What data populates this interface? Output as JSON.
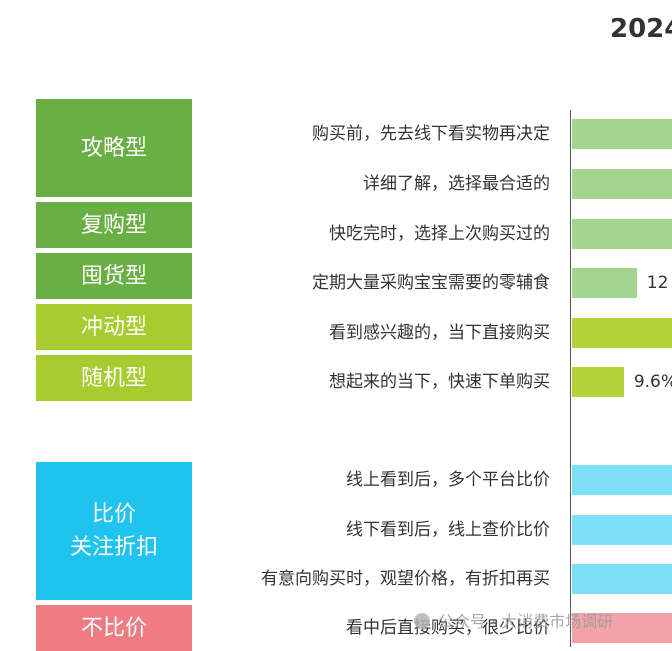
{
  "title": "2024",
  "groups": [
    {
      "label": "攻略型",
      "color": "#6aaf44"
    },
    {
      "label": "复购型",
      "color": "#6aaf44"
    },
    {
      "label": "囤货型",
      "color": "#6aaf44"
    },
    {
      "label": "冲动型",
      "color": "#a6cc2f"
    },
    {
      "label": "随机型",
      "color": "#a6cc2f"
    },
    {
      "label": "比价\n关注折扣",
      "color": "#1fc3ee"
    },
    {
      "label": "不比价",
      "color": "#ef7b83"
    }
  ],
  "chart_data": {
    "type": "bar",
    "orientation": "horizontal",
    "title": "2024",
    "categories": [
      "购买前，先去线下看实物再决定",
      "详细了解，选择最合适的",
      "快吃完时，选择上次购买过的",
      "定期大量采购宝宝需要的零辅食",
      "看到感兴趣的，当下直接购买",
      "想起来的当下，快速下单购买",
      "线上看到后，多个平台比价",
      "线下看到后，线上查价比价",
      "有意向购买时，观望价格，有折扣再买",
      "看中后直接购买，很少比价"
    ],
    "values": [
      null,
      null,
      null,
      12,
      null,
      9.6,
      null,
      null,
      null,
      null
    ],
    "value_labels": [
      "",
      "",
      "",
      "12",
      "",
      "9.6%",
      "",
      "",
      "",
      ""
    ],
    "bar_colors": [
      "#a3d58e",
      "#a3d58e",
      "#a3d58e",
      "#a3d58e",
      "#b3d33b",
      "#b3d33b",
      "#7ee0f7",
      "#7ee0f7",
      "#7ee0f7",
      "#f3a2a8"
    ],
    "grid": false,
    "legend": "none"
  },
  "watermark": "公众号 · 大消费市场调研"
}
